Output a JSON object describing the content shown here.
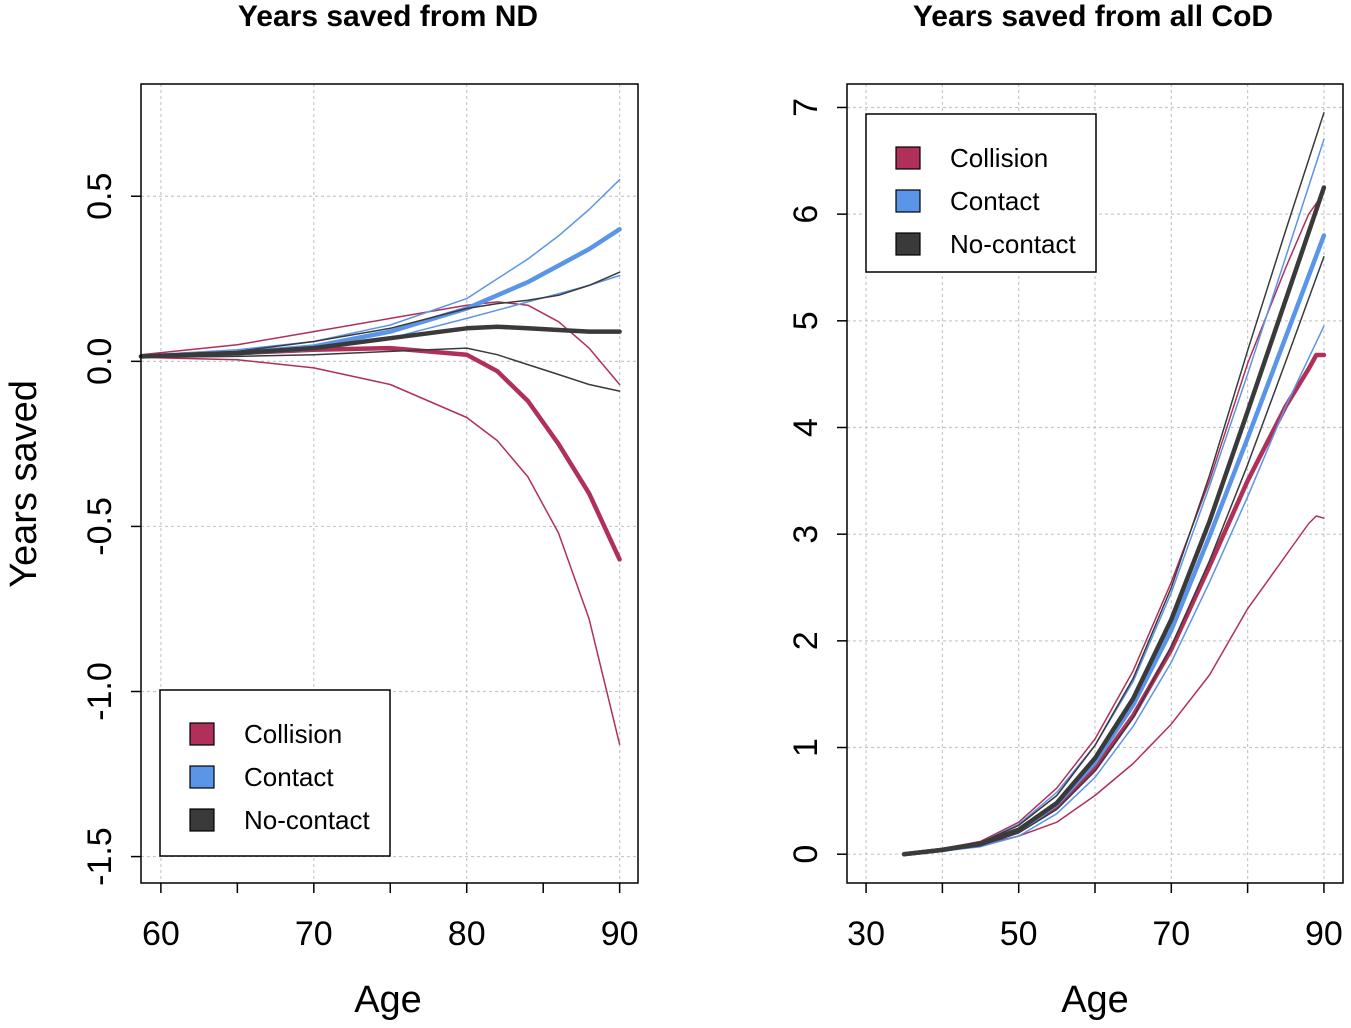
{
  "chart_data": [
    {
      "type": "line",
      "title": "Years saved from ND",
      "xlabel": "Age",
      "ylabel": "Years saved",
      "xlim": [
        58.7,
        91.2
      ],
      "ylim": [
        -1.58,
        0.84
      ],
      "xticks": [
        60,
        70,
        80,
        90
      ],
      "xtick_labels": [
        "60",
        "70",
        "80",
        "90"
      ],
      "xgrid": [
        60,
        70,
        80,
        90
      ],
      "xminor": [
        65,
        75,
        85
      ],
      "yticks": [
        -1.5,
        -1.0,
        -0.5,
        0.0,
        0.5
      ],
      "ytick_labels": [
        "-1.5",
        "-1.0",
        "-0.5",
        "0.0",
        "0.5"
      ],
      "grid": true,
      "legend_position": "bottom-left",
      "legend": [
        {
          "label": "Collision",
          "color": "#b0305a"
        },
        {
          "label": "Contact",
          "color": "#5b95e8"
        },
        {
          "label": "No-contact",
          "color": "#3a3a3a"
        }
      ],
      "series": [
        {
          "name": "Collision",
          "role": "estimate",
          "color": "#b0305a",
          "x": [
            58.7,
            65,
            70,
            75,
            80,
            82,
            84,
            86,
            88,
            90
          ],
          "y": [
            0.015,
            0.025,
            0.035,
            0.04,
            0.02,
            -0.03,
            -0.12,
            -0.25,
            -0.4,
            -0.6
          ]
        },
        {
          "name": "Collision upper",
          "role": "ci",
          "color": "#b0305a",
          "x": [
            58.7,
            65,
            70,
            75,
            80,
            82,
            84,
            86,
            88,
            90
          ],
          "y": [
            0.02,
            0.05,
            0.09,
            0.13,
            0.17,
            0.18,
            0.17,
            0.12,
            0.04,
            -0.07
          ]
        },
        {
          "name": "Collision lower",
          "role": "ci",
          "color": "#b0305a",
          "x": [
            58.7,
            65,
            70,
            75,
            80,
            82,
            84,
            86,
            88,
            90
          ],
          "y": [
            0.012,
            0.005,
            -0.02,
            -0.07,
            -0.17,
            -0.24,
            -0.35,
            -0.52,
            -0.78,
            -1.16
          ]
        },
        {
          "name": "Contact",
          "role": "estimate",
          "color": "#5b95e8",
          "x": [
            58.7,
            65,
            70,
            75,
            80,
            82,
            84,
            86,
            88,
            90
          ],
          "y": [
            0.015,
            0.025,
            0.045,
            0.09,
            0.16,
            0.2,
            0.24,
            0.29,
            0.34,
            0.4
          ]
        },
        {
          "name": "Contact upper",
          "role": "ci",
          "color": "#5b95e8",
          "x": [
            58.7,
            65,
            70,
            75,
            80,
            82,
            84,
            86,
            88,
            90
          ],
          "y": [
            0.018,
            0.035,
            0.06,
            0.11,
            0.19,
            0.25,
            0.31,
            0.38,
            0.46,
            0.55
          ]
        },
        {
          "name": "Contact lower",
          "role": "ci",
          "color": "#5b95e8",
          "x": [
            58.7,
            65,
            70,
            75,
            80,
            82,
            84,
            86,
            88,
            90
          ],
          "y": [
            0.013,
            0.02,
            0.035,
            0.07,
            0.13,
            0.155,
            0.18,
            0.205,
            0.23,
            0.26
          ]
        },
        {
          "name": "No-contact",
          "role": "estimate",
          "color": "#3a3a3a",
          "x": [
            58.7,
            65,
            70,
            75,
            80,
            82,
            84,
            86,
            88,
            90
          ],
          "y": [
            0.015,
            0.025,
            0.04,
            0.07,
            0.1,
            0.105,
            0.1,
            0.095,
            0.09,
            0.09
          ]
        },
        {
          "name": "No-contact upper",
          "role": "ci",
          "color": "#3a3a3a",
          "x": [
            58.7,
            65,
            70,
            75,
            80,
            82,
            84,
            86,
            88,
            90
          ],
          "y": [
            0.018,
            0.03,
            0.06,
            0.1,
            0.16,
            0.175,
            0.185,
            0.2,
            0.23,
            0.27
          ]
        },
        {
          "name": "No-contact lower",
          "role": "ci",
          "color": "#3a3a3a",
          "x": [
            58.7,
            65,
            70,
            75,
            80,
            82,
            84,
            86,
            88,
            90
          ],
          "y": [
            0.012,
            0.015,
            0.02,
            0.03,
            0.04,
            0.02,
            -0.01,
            -0.04,
            -0.07,
            -0.09
          ]
        }
      ]
    },
    {
      "type": "line",
      "title": "Years saved from all CoD",
      "xlabel": "Age",
      "ylabel": "",
      "xlim": [
        27.5,
        92.5
      ],
      "ylim": [
        -0.27,
        7.22
      ],
      "xticks": [
        30,
        50,
        70,
        90
      ],
      "xtick_labels": [
        "30",
        "50",
        "70",
        "90"
      ],
      "xgrid": [
        30,
        40,
        50,
        60,
        70,
        80,
        90
      ],
      "xminor": [
        40,
        60,
        80
      ],
      "yticks": [
        0,
        1,
        2,
        3,
        4,
        5,
        6,
        7
      ],
      "ytick_labels": [
        "0",
        "1",
        "2",
        "3",
        "4",
        "5",
        "6",
        "7"
      ],
      "grid": true,
      "legend_position": "top-left",
      "legend": [
        {
          "label": "Collision",
          "color": "#b0305a"
        },
        {
          "label": "Contact",
          "color": "#5b95e8"
        },
        {
          "label": "No-contact",
          "color": "#3a3a3a"
        }
      ],
      "series": [
        {
          "name": "Collision upper",
          "role": "ci",
          "color": "#b0305a",
          "x": [
            35,
            40,
            45,
            50,
            55,
            60,
            65,
            70,
            75,
            80,
            85,
            88,
            90
          ],
          "y": [
            0,
            0.05,
            0.12,
            0.3,
            0.62,
            1.08,
            1.72,
            2.55,
            3.5,
            4.6,
            5.5,
            6.0,
            6.2
          ]
        },
        {
          "name": "Collision lower",
          "role": "ci",
          "color": "#b0305a",
          "x": [
            35,
            40,
            45,
            50,
            55,
            60,
            65,
            70,
            75,
            80,
            85,
            88,
            89,
            90
          ],
          "y": [
            0,
            0.03,
            0.09,
            0.17,
            0.3,
            0.55,
            0.85,
            1.22,
            1.68,
            2.3,
            2.8,
            3.1,
            3.17,
            3.15
          ]
        },
        {
          "name": "Collision",
          "role": "estimate",
          "color": "#b0305a",
          "x": [
            35,
            40,
            45,
            50,
            55,
            60,
            65,
            70,
            75,
            80,
            85,
            88,
            89,
            90
          ],
          "y": [
            0,
            0.04,
            0.1,
            0.22,
            0.44,
            0.8,
            1.3,
            1.92,
            2.7,
            3.5,
            4.2,
            4.55,
            4.68,
            4.68
          ]
        },
        {
          "name": "Contact upper",
          "role": "ci",
          "color": "#5b95e8",
          "x": [
            35,
            40,
            45,
            50,
            55,
            60,
            65,
            70,
            75,
            80,
            85,
            90
          ],
          "y": [
            0,
            0.05,
            0.11,
            0.28,
            0.58,
            1.02,
            1.62,
            2.45,
            3.45,
            4.5,
            5.6,
            6.7
          ]
        },
        {
          "name": "Contact lower",
          "role": "ci",
          "color": "#5b95e8",
          "x": [
            35,
            40,
            45,
            50,
            55,
            60,
            65,
            70,
            75,
            80,
            85,
            90
          ],
          "y": [
            0,
            0.03,
            0.07,
            0.17,
            0.38,
            0.72,
            1.2,
            1.8,
            2.55,
            3.35,
            4.2,
            4.95
          ]
        },
        {
          "name": "Contact",
          "role": "estimate",
          "color": "#5b95e8",
          "x": [
            35,
            40,
            45,
            50,
            55,
            60,
            65,
            70,
            75,
            80,
            85,
            90
          ],
          "y": [
            0,
            0.04,
            0.09,
            0.22,
            0.47,
            0.86,
            1.4,
            2.1,
            2.98,
            3.9,
            4.85,
            5.8
          ]
        },
        {
          "name": "No-contact upper",
          "role": "ci",
          "color": "#3a3a3a",
          "x": [
            35,
            40,
            45,
            50,
            55,
            60,
            65,
            70,
            75,
            80,
            85,
            90
          ],
          "y": [
            0,
            0.05,
            0.11,
            0.27,
            0.55,
            1.02,
            1.65,
            2.5,
            3.55,
            4.72,
            5.85,
            6.95
          ]
        },
        {
          "name": "No-contact lower",
          "role": "ci",
          "color": "#3a3a3a",
          "x": [
            35,
            40,
            45,
            50,
            55,
            60,
            65,
            70,
            75,
            80,
            85,
            90
          ],
          "y": [
            0,
            0.03,
            0.08,
            0.2,
            0.42,
            0.78,
            1.28,
            1.95,
            2.75,
            3.65,
            4.62,
            5.6
          ]
        },
        {
          "name": "No-contact",
          "role": "estimate",
          "color": "#3a3a3a",
          "x": [
            35,
            40,
            45,
            50,
            55,
            60,
            65,
            70,
            75,
            80,
            85,
            90
          ],
          "y": [
            0,
            0.04,
            0.1,
            0.23,
            0.48,
            0.9,
            1.46,
            2.2,
            3.12,
            4.15,
            5.2,
            6.25
          ]
        }
      ]
    }
  ]
}
